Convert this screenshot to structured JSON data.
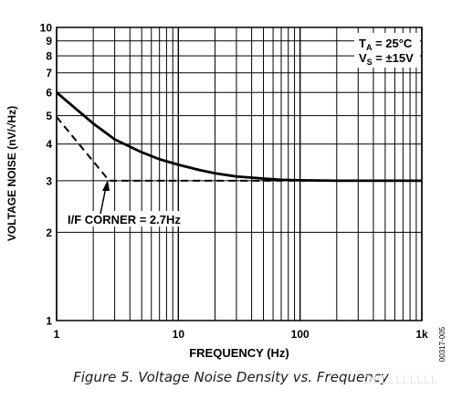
{
  "chart_data": {
    "type": "line",
    "xscale": "log",
    "yscale": "log",
    "xlim": [
      1,
      1000
    ],
    "ylim": [
      1,
      10
    ],
    "xticks": [
      {
        "value": 1,
        "label": "1"
      },
      {
        "value": 10,
        "label": "10"
      },
      {
        "value": 100,
        "label": "100"
      },
      {
        "value": 1000,
        "label": "1k"
      }
    ],
    "yticks": [
      {
        "value": 1,
        "label": "1"
      },
      {
        "value": 2,
        "label": "2"
      },
      {
        "value": 3,
        "label": "3"
      },
      {
        "value": 4,
        "label": "4"
      },
      {
        "value": 5,
        "label": "5"
      },
      {
        "value": 6,
        "label": "6"
      },
      {
        "value": 7,
        "label": "7"
      },
      {
        "value": 8,
        "label": "8"
      },
      {
        "value": 9,
        "label": "9"
      },
      {
        "value": 10,
        "label": "10"
      }
    ],
    "xlabel": "FREQUENCY (Hz)",
    "ylabel": "VOLTAGE NOISE (nV/√Hz)",
    "grid": true,
    "series": [
      {
        "style": "solid",
        "color": "#000000",
        "x": [
          1,
          1.5,
          2,
          3,
          5,
          7,
          10,
          15,
          20,
          30,
          50,
          70,
          100,
          200,
          500,
          1000
        ],
        "y": [
          6.0,
          5.2,
          4.7,
          4.15,
          3.75,
          3.55,
          3.4,
          3.26,
          3.18,
          3.1,
          3.05,
          3.02,
          3.01,
          3.0,
          3.0,
          3.0
        ]
      },
      {
        "style": "dashed",
        "color": "#000000",
        "x": [
          1,
          2.7,
          1000
        ],
        "y": [
          4.95,
          3.0,
          3.0
        ]
      }
    ],
    "annotations": {
      "corner_label": "I/F CORNER = 2.7Hz",
      "conditions": [
        {
          "main": "T",
          "sub": "A",
          "rest": " = 25°C"
        },
        {
          "main": "V",
          "sub": "S",
          "rest": " = ±15V"
        }
      ]
    }
  },
  "figure": {
    "caption": "Figure 5. Voltage Noise Density vs. Frequency",
    "code": "00317-005"
  },
  "watermark": "OBLLLLLLLL"
}
